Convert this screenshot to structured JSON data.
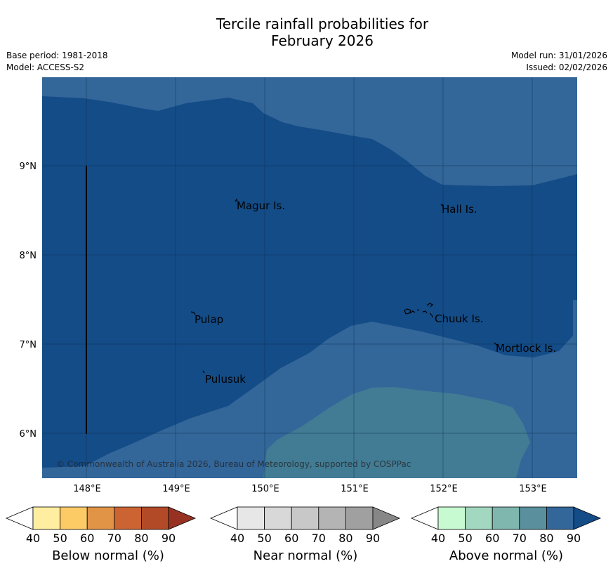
{
  "title_line1": "Tercile rainfall probabilities for",
  "title_line2": "February 2026",
  "meta": {
    "base_period": "Base period: 1981-2018",
    "model": "Model: ACCESS-S2",
    "model_run": "Model run: 31/01/2026",
    "issued": "Issued: 02/02/2026"
  },
  "map": {
    "lon_ticks": [
      "148°E",
      "149°E",
      "150°E",
      "151°E",
      "152°E",
      "153°E"
    ],
    "lat_ticks": [
      "9°N",
      "8°N",
      "7°N",
      "6°N"
    ],
    "places": [
      "Magur Is.",
      "Hall Is.",
      "Pulap",
      "Chuuk Is.",
      "Mortlock Is.",
      "Pulusuk"
    ],
    "copyright": "© Commonwealth of Australia 2026, Bureau of Meteorology, supported by COSPPac"
  },
  "colors": {
    "above_80_90": "#134c87",
    "above_70_80": "#336699",
    "above_60_70": "#427b94",
    "coast": "#000000"
  },
  "colorbars": [
    {
      "label": "Below normal (%)",
      "ticks": [
        "40",
        "50",
        "60",
        "70",
        "80",
        "90"
      ],
      "colors": [
        "#ffffff",
        "#ffeea0",
        "#fdcb66",
        "#e19446",
        "#cb6332",
        "#b24a28",
        "#973223"
      ]
    },
    {
      "label": "Near normal (%)",
      "ticks": [
        "40",
        "50",
        "60",
        "70",
        "80",
        "90"
      ],
      "colors": [
        "#ffffff",
        "#e7e7e7",
        "#d8d8d8",
        "#c8c8c8",
        "#b4b4b4",
        "#a0a0a0",
        "#878787"
      ]
    },
    {
      "label": "Above normal (%)",
      "ticks": [
        "40",
        "50",
        "60",
        "70",
        "80",
        "90"
      ],
      "colors": [
        "#ffffff",
        "#c7fad0",
        "#a2d8c0",
        "#7fb6ae",
        "#5a8f9e",
        "#336699",
        "#134c87"
      ]
    }
  ]
}
